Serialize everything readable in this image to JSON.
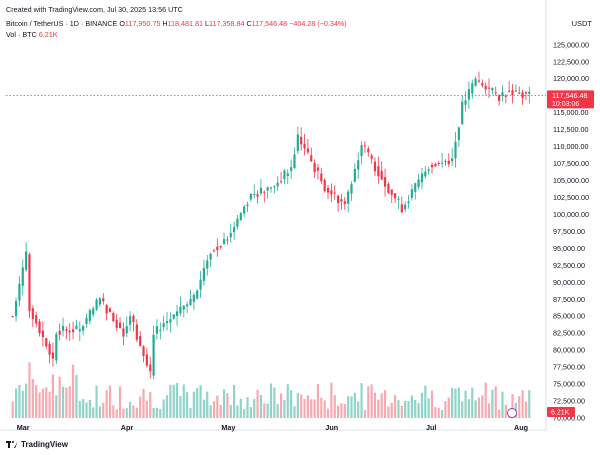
{
  "header": {
    "created": "Created with TradingView.com, Jul 30, 2025 13:56 UTC",
    "symbol": "Bitcoin / TetherUS · 1D · BINANCE",
    "o_label": "O",
    "o_value": "117,950.75",
    "h_label": "H",
    "h_value": "118,481.81",
    "l_label": "L",
    "l_value": "117,358.84",
    "c_label": "C",
    "c_value": "117,546.48",
    "change": "−404.28 (−0.34%)",
    "vol_label": "Vol · BTC",
    "vol_value": "6.21K",
    "quote": "USDT"
  },
  "footer": {
    "brand": "TradingView"
  },
  "colors": {
    "up": "#22ab94",
    "down": "#f23645",
    "up_vol": "#8fd3c9",
    "down_vol": "#f7a9b0",
    "grid": "#f0f3fa"
  },
  "chart_data": {
    "type": "candlestick",
    "symbol": "BTCUSDT",
    "interval": "1D",
    "y_axis": {
      "ticks": [
        70000,
        72500,
        75000,
        77500,
        80000,
        82500,
        85000,
        87500,
        90000,
        92500,
        95000,
        97500,
        100000,
        102500,
        105000,
        107500,
        110000,
        112500,
        115000,
        117500,
        120000,
        122500,
        125000
      ],
      "tick_labels": [
        "70,000.00",
        "72,500.00",
        "75,000.00",
        "77,500.00",
        "80,000.00",
        "82,500.00",
        "85,000.00",
        "87,500.00",
        "90,000.00",
        "92,500.00",
        "95,000.00",
        "97,500.00",
        "100,000.00",
        "102,500.00",
        "105,000.00",
        "107,500.00",
        "110,000.00",
        "112,500.00",
        "115,000.00",
        "117,500.00",
        "120,000.00",
        "122,500.00",
        "125,000.00"
      ],
      "range": [
        70000,
        126000
      ],
      "position": "right"
    },
    "x_axis": {
      "labels": [
        "Mar",
        "Apr",
        "May",
        "Jun",
        "Jul",
        "Aug"
      ]
    },
    "last_price": {
      "value": 117546.48,
      "label": "117,546.48",
      "countdown": "10:03:06"
    },
    "volume_label": "6.21K",
    "close_keypoints": [
      [
        "2025-02-26",
        85000
      ],
      [
        "2025-03-02",
        94300
      ],
      [
        "2025-03-03",
        86200
      ],
      [
        "2025-03-10",
        78600
      ],
      [
        "2025-03-11",
        82900
      ],
      [
        "2025-03-18",
        83000
      ],
      [
        "2025-03-24",
        87500
      ],
      [
        "2025-03-31",
        82500
      ],
      [
        "2025-04-02",
        85200
      ],
      [
        "2025-04-08",
        76300
      ],
      [
        "2025-04-09",
        82600
      ],
      [
        "2025-04-21",
        87500
      ],
      [
        "2025-04-26",
        94700
      ],
      [
        "2025-05-01",
        96500
      ],
      [
        "2025-05-08",
        103000
      ],
      [
        "2025-05-14",
        103800
      ],
      [
        "2025-05-20",
        106800
      ],
      [
        "2025-05-22",
        111500
      ],
      [
        "2025-05-30",
        104000
      ],
      [
        "2025-06-05",
        101500
      ],
      [
        "2025-06-10",
        110300
      ],
      [
        "2025-06-17",
        104600
      ],
      [
        "2025-06-22",
        100900
      ],
      [
        "2025-06-30",
        107200
      ],
      [
        "2025-07-07",
        108200
      ],
      [
        "2025-07-10",
        116000
      ],
      [
        "2025-07-14",
        119900
      ],
      [
        "2025-07-21",
        117300
      ],
      [
        "2025-07-24",
        118400
      ],
      [
        "2025-07-30",
        117546.48
      ]
    ]
  }
}
